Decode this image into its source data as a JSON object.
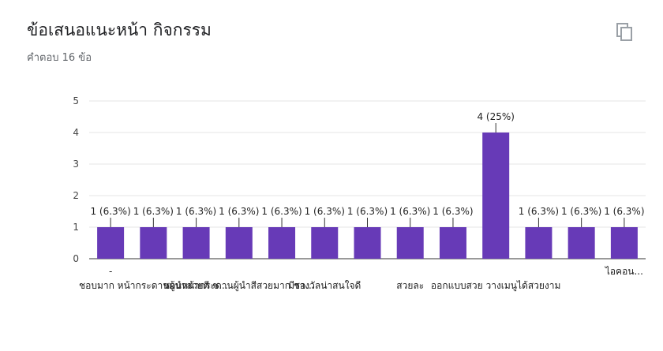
{
  "header": {
    "title": "ข้อเสนอแนะหน้า กิจกรรม",
    "subtitle": "คำตอบ 16 ข้อ",
    "copy_icon": "copy-icon"
  },
  "chart_data": {
    "type": "bar",
    "title": "",
    "xlabel": "",
    "ylabel": "",
    "ylim": [
      0,
      5
    ],
    "yticks": [
      0,
      1,
      2,
      3,
      4,
      5
    ],
    "grid": true,
    "bar_color": "#673ab7",
    "categories": [
      "-",
      "ชอบมาก หน้ากระดานผู้นำสวยดี ช...",
      "",
      "ชอบหน้ากระดานผู้นำสีสวยมาก ชอ...",
      "",
      "มีรางวัลน่าสนใจดี",
      "",
      "สวยละ",
      "",
      "ออกแบบสวย วางเมนูได้สวยงาม",
      "",
      "",
      "ไอคอน..."
    ],
    "values": [
      1,
      1,
      1,
      1,
      1,
      1,
      1,
      1,
      1,
      4,
      1,
      1,
      1
    ],
    "data_labels": [
      "1 (6.3%)",
      "1 (6.3%)",
      "1 (6.3%)",
      "1 (6.3%)",
      "1 (6.3%)",
      "1 (6.3%)",
      "1 (6.3%)",
      "1 (6.3%)",
      "1 (6.3%)",
      "4 (25%)",
      "1 (6.3%)",
      "1 (6.3%)",
      "1 (6.3%)"
    ]
  }
}
